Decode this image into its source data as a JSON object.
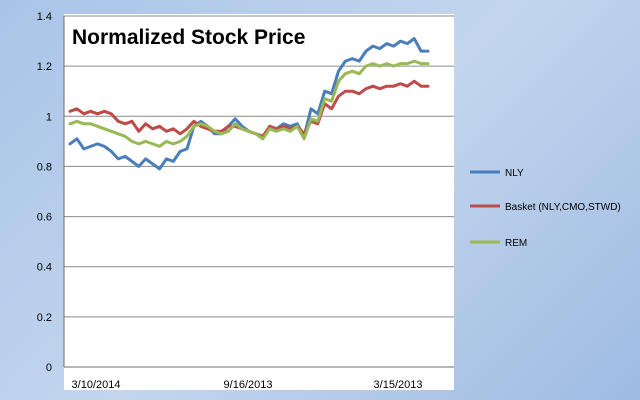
{
  "chart_data": {
    "type": "line",
    "title": "Normalized Stock Price",
    "xlabel": "",
    "ylabel": "",
    "ylim": [
      0,
      1.4
    ],
    "yticks": [
      "0",
      "0.2",
      "0.4",
      "0.6",
      "0.8",
      "1",
      "1.2",
      "1.4"
    ],
    "xtick_labels": [
      "3/10/2014",
      "9/16/2013",
      "3/15/2013"
    ],
    "grid": true,
    "legend_position": "right",
    "series": [
      {
        "name": "NLY",
        "color": "#4a7ebb",
        "values": [
          0.89,
          0.91,
          0.87,
          0.88,
          0.89,
          0.88,
          0.86,
          0.83,
          0.84,
          0.82,
          0.8,
          0.83,
          0.81,
          0.79,
          0.83,
          0.82,
          0.86,
          0.87,
          0.96,
          0.98,
          0.96,
          0.93,
          0.93,
          0.96,
          0.99,
          0.96,
          0.94,
          0.93,
          0.91,
          0.96,
          0.95,
          0.97,
          0.96,
          0.97,
          0.92,
          1.03,
          1.01,
          1.1,
          1.09,
          1.18,
          1.22,
          1.23,
          1.22,
          1.26,
          1.28,
          1.27,
          1.29,
          1.28,
          1.3,
          1.29,
          1.31,
          1.26,
          1.26
        ]
      },
      {
        "name": "Basket (NLY,CMO,STWD)",
        "color": "#be4b48",
        "values": [
          1.02,
          1.03,
          1.01,
          1.02,
          1.01,
          1.02,
          1.01,
          0.98,
          0.97,
          0.98,
          0.94,
          0.97,
          0.95,
          0.96,
          0.94,
          0.95,
          0.93,
          0.95,
          0.98,
          0.96,
          0.95,
          0.94,
          0.94,
          0.96,
          0.96,
          0.95,
          0.94,
          0.93,
          0.92,
          0.96,
          0.95,
          0.96,
          0.95,
          0.96,
          0.93,
          0.98,
          0.97,
          1.05,
          1.03,
          1.08,
          1.1,
          1.1,
          1.09,
          1.11,
          1.12,
          1.11,
          1.12,
          1.12,
          1.13,
          1.12,
          1.14,
          1.12,
          1.12
        ]
      },
      {
        "name": "REM",
        "color": "#98b954",
        "values": [
          0.97,
          0.98,
          0.97,
          0.97,
          0.96,
          0.95,
          0.94,
          0.93,
          0.92,
          0.9,
          0.89,
          0.9,
          0.89,
          0.88,
          0.9,
          0.89,
          0.9,
          0.92,
          0.96,
          0.97,
          0.96,
          0.94,
          0.93,
          0.94,
          0.97,
          0.95,
          0.94,
          0.93,
          0.91,
          0.95,
          0.94,
          0.95,
          0.94,
          0.96,
          0.91,
          0.99,
          0.98,
          1.07,
          1.06,
          1.14,
          1.17,
          1.18,
          1.17,
          1.2,
          1.21,
          1.2,
          1.21,
          1.2,
          1.21,
          1.21,
          1.22,
          1.21,
          1.21
        ]
      }
    ]
  }
}
